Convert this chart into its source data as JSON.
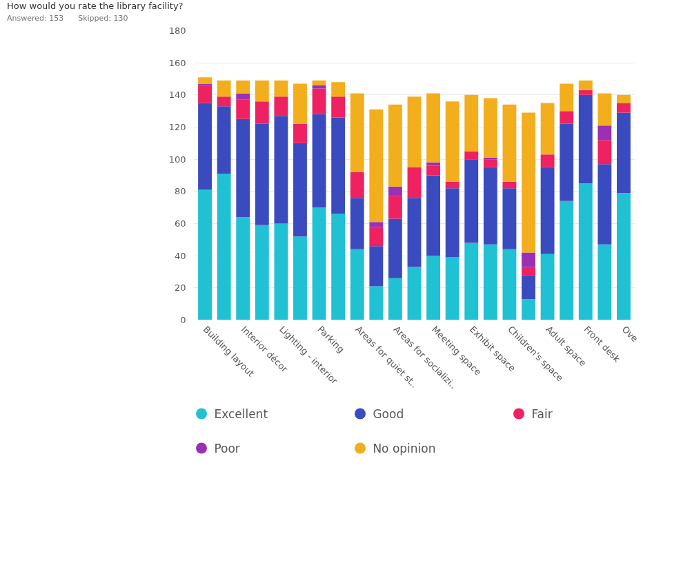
{
  "chart_data": {
    "type": "bar",
    "stacked": true,
    "title": "How would you rate the library facility?",
    "subtitle": "Answered: 153      Skipped: 130",
    "categories": [
      "Building layout",
      null,
      "Interior décor",
      null,
      "Lighting - interior",
      null,
      "Parking",
      null,
      "Areas for quiet st..",
      null,
      "Areas for socializi..",
      null,
      "Meeting space",
      null,
      "Exhibit space",
      null,
      "Children's space",
      null,
      "Adult space",
      null,
      "Front desk",
      null,
      "Ove"
    ],
    "series": [
      {
        "name": "Excellent",
        "color": "#1fc1d3",
        "values": [
          81,
          91,
          64,
          59,
          60,
          52,
          70,
          66,
          44,
          21,
          26,
          33,
          40,
          39,
          48,
          47,
          44,
          13,
          41,
          74,
          85,
          47,
          79
        ]
      },
      {
        "name": "Good",
        "color": "#3a4bbf",
        "values": [
          54,
          42,
          61,
          63,
          67,
          58,
          58,
          60,
          32,
          25,
          37,
          43,
          50,
          43,
          52,
          48,
          38,
          15,
          54,
          48,
          55,
          50,
          50
        ]
      },
      {
        "name": "Fair",
        "color": "#ee2161",
        "values": [
          11,
          6,
          12,
          14,
          12,
          12,
          16,
          13,
          16,
          12,
          14,
          19,
          6,
          4,
          5,
          5,
          4,
          5,
          8,
          8,
          3,
          15,
          6
        ]
      },
      {
        "name": "Poor",
        "color": "#9b2fb5",
        "values": [
          1,
          0,
          4,
          0,
          0,
          0,
          2,
          0,
          0,
          3,
          6,
          0,
          2,
          0,
          0,
          1,
          0,
          9,
          0,
          0,
          0,
          9,
          0
        ]
      },
      {
        "name": "No opinion",
        "color": "#f2ae1c",
        "values": [
          4,
          10,
          8,
          13,
          10,
          25,
          3,
          9,
          49,
          70,
          51,
          44,
          43,
          50,
          35,
          37,
          48,
          87,
          32,
          17,
          6,
          20,
          5
        ]
      }
    ],
    "ylim": [
      0,
      180
    ],
    "yticks": [
      0,
      20,
      40,
      60,
      80,
      100,
      120,
      140,
      160,
      180
    ],
    "grid": "y",
    "legend": "bottom"
  }
}
